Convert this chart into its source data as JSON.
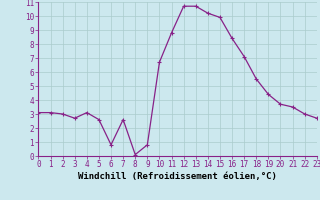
{
  "x": [
    0,
    1,
    2,
    3,
    4,
    5,
    6,
    7,
    8,
    9,
    10,
    11,
    12,
    13,
    14,
    15,
    16,
    17,
    18,
    19,
    20,
    21,
    22,
    23
  ],
  "y": [
    3.1,
    3.1,
    3.0,
    2.7,
    3.1,
    2.6,
    0.8,
    2.6,
    0.1,
    0.8,
    6.7,
    8.8,
    10.7,
    10.7,
    10.2,
    9.9,
    8.4,
    7.1,
    5.5,
    4.4,
    3.7,
    3.5,
    3.0,
    2.7
  ],
  "line_color": "#882288",
  "marker": "+",
  "marker_size": 3,
  "marker_linewidth": 0.8,
  "bg_color": "#cce8ee",
  "grid_color": "#aacccc",
  "xlabel": "Windchill (Refroidissement éolien,°C)",
  "xlim": [
    0,
    23
  ],
  "ylim": [
    0,
    11
  ],
  "xticks": [
    0,
    1,
    2,
    3,
    4,
    5,
    6,
    7,
    8,
    9,
    10,
    11,
    12,
    13,
    14,
    15,
    16,
    17,
    18,
    19,
    20,
    21,
    22,
    23
  ],
  "yticks": [
    0,
    1,
    2,
    3,
    4,
    5,
    6,
    7,
    8,
    9,
    10,
    11
  ],
  "xlabel_fontsize": 6.5,
  "tick_fontsize": 5.5,
  "linewidth": 0.9
}
